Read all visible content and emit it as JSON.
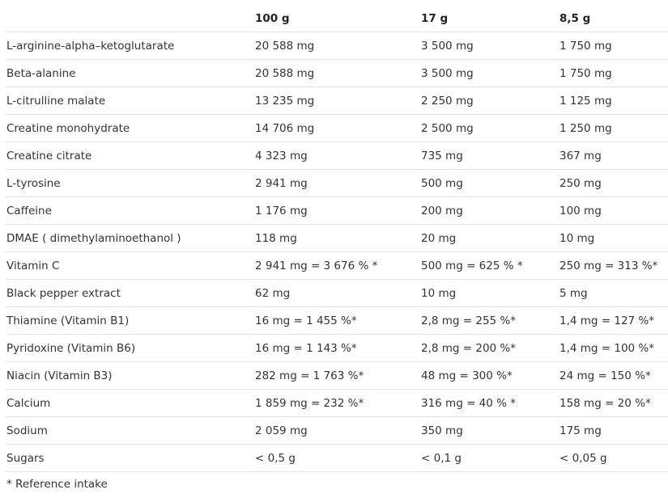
{
  "headers": [
    "",
    "100 g",
    "17 g",
    "8,5 g"
  ],
  "rows": [
    [
      "L-arginine-alpha–ketoglutarate",
      "20 588 mg",
      "3 500 mg",
      "1 750 mg"
    ],
    [
      "Beta-alanine",
      "20 588 mg",
      "3 500 mg",
      "1 750 mg"
    ],
    [
      "L-citrulline malate",
      "13 235 mg",
      "2 250 mg",
      "1 125 mg"
    ],
    [
      "Creatine monohydrate",
      "14 706 mg",
      "2 500 mg",
      "1 250 mg"
    ],
    [
      "Creatine citrate",
      "4 323 mg",
      "735 mg",
      "367 mg"
    ],
    [
      "L-tyrosine",
      "2 941 mg",
      "500 mg",
      "250 mg"
    ],
    [
      "Caffeine",
      "1 176 mg",
      "200 mg",
      "100 mg"
    ],
    [
      "DMAE ( dimethylaminoethanol )",
      "118 mg",
      "20 mg",
      "10 mg"
    ],
    [
      "Vitamin C",
      "2 941 mg = 3 676 % *",
      "500 mg = 625 % *",
      "250 mg = 313 %*"
    ],
    [
      "Black pepper extract",
      "62 mg",
      "10 mg",
      "5 mg"
    ],
    [
      "Thiamine (Vitamin B1)",
      "16 mg = 1 455 %*",
      "2,8 mg = 255 %*",
      "1,4 mg = 127 %*"
    ],
    [
      "Pyridoxine (Vitamin B6)",
      "16 mg = 1 143 %*",
      "2,8 mg = 200 %*",
      "1,4 mg = 100 %*"
    ],
    [
      "Niacin (Vitamin B3)",
      "282 mg = 1 763 %*",
      "48 mg = 300 %*",
      "24 mg = 150 %*"
    ],
    [
      "Calcium",
      "1 859 mg = 232 %*",
      "316 mg = 40 % *",
      "158 mg = 20 %*"
    ],
    [
      "Sodium",
      "2 059 mg",
      "350 mg",
      "175 mg"
    ],
    [
      "Sugars",
      "< 0,5 g",
      "< 0,1 g",
      "< 0,05 g"
    ]
  ],
  "footnote": "* Reference intake"
}
